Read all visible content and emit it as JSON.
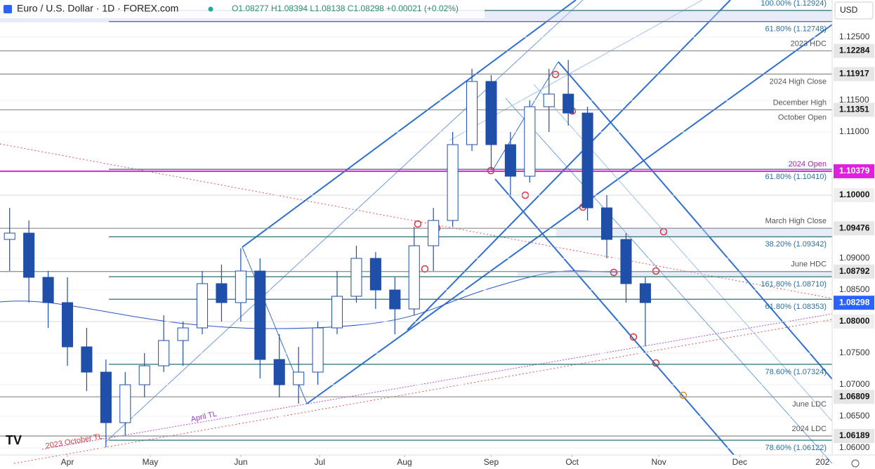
{
  "chart_data": {
    "type": "candlestick",
    "title": "Euro / U.S. Dollar · 1D · FOREX.com",
    "ohlc_header": "O1.08277  H1.08394  L1.08138  C1.08298  +0.00021 (+0.02%)",
    "currency": "USD",
    "xlim": [
      0,
      216
    ],
    "xticks": [
      {
        "value": 17.5,
        "label": "Apr"
      },
      {
        "value": 39,
        "label": "May"
      },
      {
        "value": 62.5,
        "label": "Jun"
      },
      {
        "value": 83,
        "label": "Jul"
      },
      {
        "value": 105,
        "label": "Aug"
      },
      {
        "value": 127.5,
        "label": "Sep"
      },
      {
        "value": 148.5,
        "label": "Oct"
      },
      {
        "value": 171,
        "label": "Nov"
      },
      {
        "value": 192,
        "label": "Dec"
      },
      {
        "value": 213.5,
        "label": "202"
      }
    ],
    "ylim": [
      1.05889,
      1.13089
    ],
    "yticks": [
      {
        "value": 1.125,
        "label": "1.12500"
      },
      {
        "value": 1.115,
        "label": "1.11500"
      },
      {
        "value": 1.11,
        "label": "1.11000"
      },
      {
        "value": 1.09,
        "label": "1.09000"
      },
      {
        "value": 1.085,
        "label": "1.08500"
      },
      {
        "value": 1.075,
        "label": "1.07500"
      },
      {
        "value": 1.07,
        "label": "1.07000"
      },
      {
        "value": 1.065,
        "label": "1.06500"
      },
      {
        "value": 1.06,
        "label": "1.06000"
      }
    ],
    "candles": {
      "color": "#1f4fa8",
      "x": [
        2.5,
        7.5,
        12.5,
        17.5,
        22.5,
        27.5,
        32.5,
        37.5,
        42.5,
        47.5,
        52.5,
        57.5,
        62.5,
        67.5,
        72.5,
        77.5,
        82.5,
        87.5,
        92.5,
        97.5,
        102.5,
        107.5,
        112.5,
        117.5,
        122.5,
        127.5,
        132.5,
        137.5,
        142.5,
        147.5,
        152.5,
        157.5,
        162.5,
        167.5
      ],
      "open": [
        1.093,
        1.094,
        1.087,
        1.083,
        1.076,
        1.072,
        1.064,
        1.07,
        1.073,
        1.077,
        1.079,
        1.086,
        1.083,
        1.088,
        1.074,
        1.07,
        1.072,
        1.079,
        1.084,
        1.09,
        1.085,
        1.082,
        1.092,
        1.096,
        1.108,
        1.118,
        1.108,
        1.103,
        1.114,
        1.116,
        1.113,
        1.098,
        1.093,
        1.086
      ],
      "high": [
        1.098,
        1.096,
        1.088,
        1.087,
        1.079,
        1.074,
        1.072,
        1.075,
        1.081,
        1.08,
        1.088,
        1.089,
        1.0916,
        1.09,
        1.078,
        1.076,
        1.08,
        1.088,
        1.092,
        1.091,
        1.087,
        1.095,
        1.098,
        1.11,
        1.12,
        1.119,
        1.11,
        1.115,
        1.12,
        1.1214,
        1.114,
        1.1,
        1.094,
        1.087
      ],
      "low": [
        1.088,
        1.083,
        1.079,
        1.073,
        1.069,
        1.0601,
        1.062,
        1.068,
        1.072,
        1.073,
        1.078,
        1.08,
        1.08,
        1.071,
        1.068,
        1.067,
        1.07,
        1.078,
        1.083,
        1.082,
        1.078,
        1.081,
        1.088,
        1.095,
        1.107,
        1.104,
        1.1,
        1.102,
        1.11,
        1.111,
        1.096,
        1.09,
        1.083,
        1.0761
      ],
      "close": [
        1.094,
        1.087,
        1.083,
        1.076,
        1.072,
        1.064,
        1.07,
        1.073,
        1.077,
        1.079,
        1.086,
        1.083,
        1.088,
        1.074,
        1.07,
        1.072,
        1.079,
        1.084,
        1.09,
        1.085,
        1.082,
        1.092,
        1.096,
        1.108,
        1.118,
        1.108,
        1.103,
        1.114,
        1.116,
        1.113,
        1.098,
        1.093,
        1.086,
        1.083
      ]
    },
    "levels": [
      {
        "value": 1.12924,
        "kind": "fib",
        "names": [
          "100.00% (1.12924)"
        ],
        "label_side": "above"
      },
      {
        "value": 1.12748,
        "kind": "fib",
        "names": [
          "61.80% (1.12748)"
        ],
        "label_side": "below"
      },
      {
        "value": 1.12284,
        "kind": "sr",
        "names": [
          "2023 HDC"
        ],
        "label_side": "above",
        "tag": "1.12284"
      },
      {
        "value": 1.11917,
        "kind": "sr",
        "names": [
          "2024 High Close"
        ],
        "label_side": "below",
        "tag": "1.11917"
      },
      {
        "value": 1.11351,
        "kind": "sr",
        "names": [
          "December High",
          "October Open"
        ],
        "label_side": "above",
        "tag": "1.11351"
      },
      {
        "value": 1.10379,
        "kind": "open",
        "names": [
          "2024 Open"
        ],
        "label_side": "above",
        "tag": "1.10379"
      },
      {
        "value": 1.1041,
        "kind": "fib",
        "names": [
          "61.80% (1.10410)"
        ],
        "label_side": "below"
      },
      {
        "value": 1.1,
        "kind": "axis",
        "names": [],
        "label_side": "above",
        "tag": "1.10000"
      },
      {
        "value": 1.09476,
        "kind": "sr",
        "names": [
          "March High Close"
        ],
        "label_side": "above",
        "tag": "1.09476"
      },
      {
        "value": 1.09342,
        "kind": "fib",
        "names": [
          "38.20% (1.09342)"
        ],
        "label_side": "below"
      },
      {
        "value": 1.08792,
        "kind": "sr",
        "names": [
          "June HDC"
        ],
        "label_side": "above",
        "tag": "1.08792"
      },
      {
        "value": 1.0871,
        "kind": "fib",
        "names": [
          "161.80% (1.08710)"
        ],
        "label_side": "below"
      },
      {
        "value": 1.08353,
        "kind": "fib",
        "names": [
          "61.80% (1.08353)"
        ],
        "label_side": "below"
      },
      {
        "value": 1.08298,
        "kind": "price",
        "names": [],
        "label_side": "above",
        "tag": "1.08298"
      },
      {
        "value": 1.08,
        "kind": "axis",
        "names": [],
        "label_side": "above",
        "tag": "1.08000"
      },
      {
        "value": 1.07324,
        "kind": "fib",
        "names": [
          "78.60% (1.07324)"
        ],
        "label_side": "below"
      },
      {
        "value": 1.06809,
        "kind": "sr",
        "names": [
          "June LDC"
        ],
        "label_side": "below",
        "tag": "1.06809"
      },
      {
        "value": 1.06189,
        "kind": "sr",
        "names": [
          "2024 LDC"
        ],
        "label_side": "above",
        "tag": "1.06189"
      },
      {
        "value": 1.06122,
        "kind": "fib",
        "names": [
          "78.60% (1.06122)"
        ],
        "label_side": "below"
      }
    ],
    "annotations": [
      "April TL",
      "2023 October TL"
    ]
  }
}
